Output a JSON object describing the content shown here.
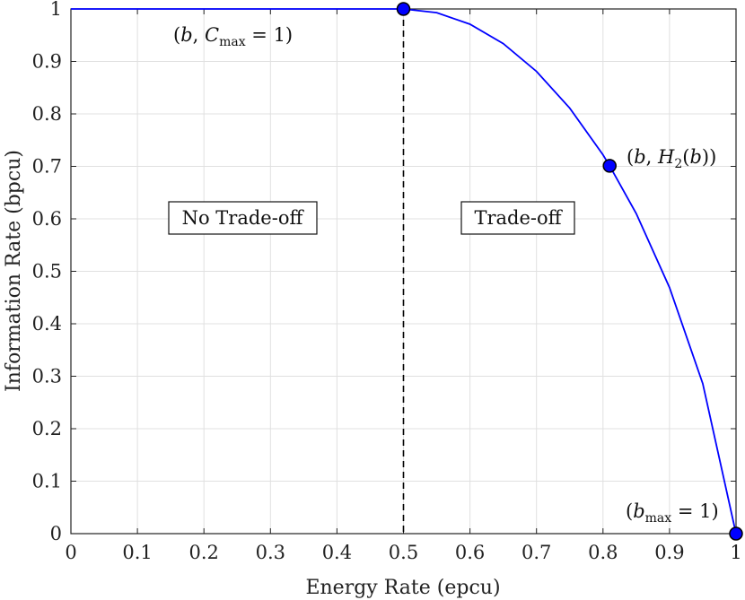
{
  "chart_data": {
    "type": "line",
    "xlabel": "Energy Rate (epcu)",
    "ylabel": "Information Rate (bpcu)",
    "xlim": [
      0,
      1
    ],
    "ylim": [
      0,
      1
    ],
    "grid": true,
    "x_ticks": [
      "0",
      "0.1",
      "0.2",
      "0.3",
      "0.4",
      "0.5",
      "0.6",
      "0.7",
      "0.8",
      "0.9",
      "1"
    ],
    "y_ticks": [
      "0",
      "0.1",
      "0.2",
      "0.3",
      "0.4",
      "0.5",
      "0.6",
      "0.7",
      "0.8",
      "0.9",
      "1"
    ],
    "series": [
      {
        "color": "#0000ff",
        "x": [
          0,
          0.5,
          0.55,
          0.6,
          0.65,
          0.7,
          0.75,
          0.8,
          0.81,
          0.85,
          0.9,
          0.95,
          1.0
        ],
        "y": [
          1,
          1,
          0.993,
          0.971,
          0.934,
          0.881,
          0.811,
          0.722,
          0.701,
          0.61,
          0.469,
          0.286,
          0
        ]
      }
    ],
    "markers": [
      {
        "x": 0.5,
        "y": 1,
        "color": "#0000ff"
      },
      {
        "x": 0.81,
        "y": 0.701,
        "color": "#0000ff"
      },
      {
        "x": 1.0,
        "y": 0,
        "color": "#0000ff"
      }
    ],
    "vertical_line": {
      "x": 0.5,
      "style": "dashed",
      "color": "#000000"
    },
    "annotations": {
      "point_b_cmax": "(b, C_max = 1)",
      "point_b_h2": "(b, H_2(b))",
      "point_bmax": "(b_max = 1)",
      "region_left": "No Trade-off",
      "region_right": "Trade-off"
    }
  }
}
